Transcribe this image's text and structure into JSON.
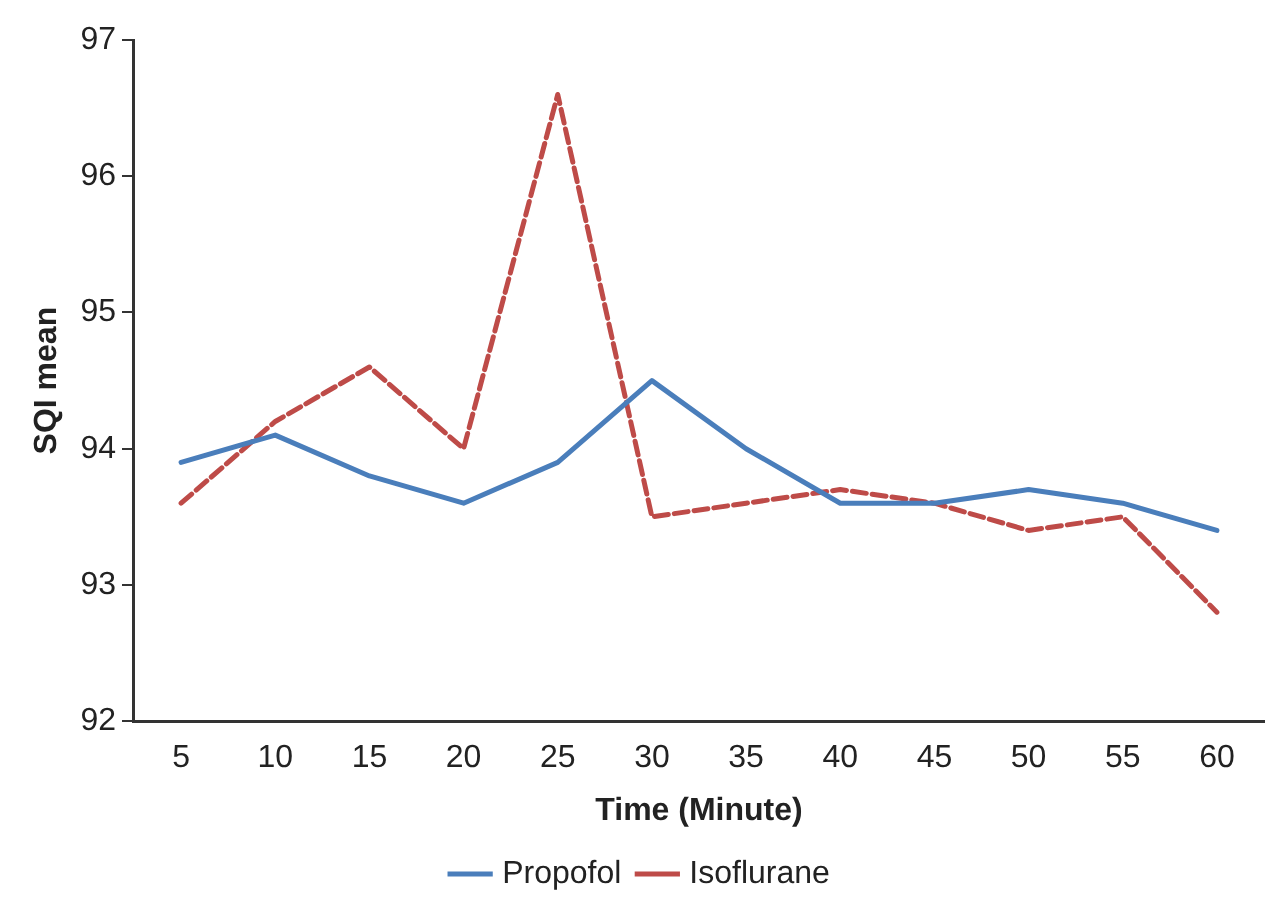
{
  "chart_data": {
    "type": "line",
    "xlabel": "Time (Minute)",
    "ylabel": "SQI mean",
    "categories": [
      "5",
      "10",
      "15",
      "20",
      "25",
      "30",
      "35",
      "40",
      "45",
      "50",
      "55",
      "60"
    ],
    "series": [
      {
        "name": "Propofol",
        "color": "#4a7ebb",
        "line_style": "solid",
        "values": [
          93.9,
          94.1,
          93.8,
          93.6,
          93.9,
          94.5,
          94.0,
          93.6,
          93.6,
          93.7,
          93.6,
          93.4
        ]
      },
      {
        "name": "Isoflurane",
        "color": "#be4b48",
        "line_style": "dashed",
        "values": [
          93.6,
          94.2,
          94.6,
          94.0,
          96.6,
          93.5,
          93.6,
          93.7,
          93.6,
          93.4,
          93.5,
          92.8
        ]
      }
    ],
    "ylim": [
      92,
      97
    ],
    "yticks": [
      92,
      93,
      94,
      95,
      96,
      97
    ],
    "grid": false,
    "legend": "bottom",
    "marker": "none"
  }
}
